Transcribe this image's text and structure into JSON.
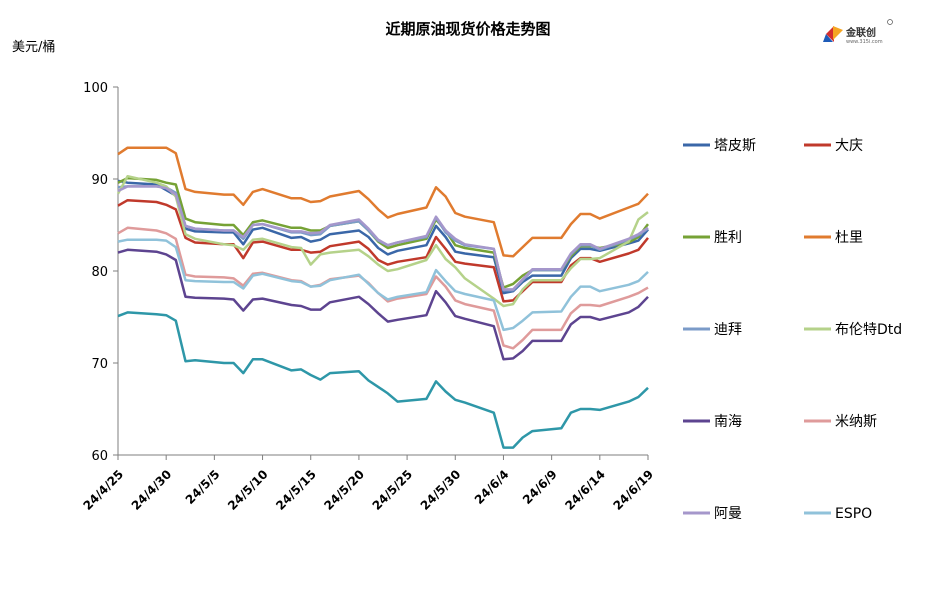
{
  "chart_data": {
    "type": "line",
    "title": "近期原油现货价格走势图",
    "unit_label": "美元/桶",
    "ylim": [
      60,
      100
    ],
    "yticks": [
      60,
      70,
      80,
      90,
      100
    ],
    "x_tick_labels": [
      "24/4/25",
      "24/4/30",
      "24/5/5",
      "24/5/10",
      "24/5/15",
      "24/5/20",
      "24/5/25",
      "24/5/30",
      "24/6/4",
      "24/6/9",
      "24/6/14",
      "24/6/19"
    ],
    "x_tick_days": [
      0,
      5,
      10,
      15,
      20,
      25,
      30,
      35,
      40,
      45,
      50,
      55
    ],
    "x_range_days": [
      0,
      55
    ],
    "grid": false,
    "legend_position": "right",
    "dates": [
      "24/4/25",
      "24/4/26",
      "24/4/29",
      "24/4/30",
      "24/5/1",
      "24/5/2",
      "24/5/3",
      "24/5/6",
      "24/5/7",
      "24/5/8",
      "24/5/9",
      "24/5/10",
      "24/5/13",
      "24/5/14",
      "24/5/15",
      "24/5/16",
      "24/5/17",
      "24/5/20",
      "24/5/21",
      "24/5/22",
      "24/5/23",
      "24/5/24",
      "24/5/27",
      "24/5/28",
      "24/5/29",
      "24/5/30",
      "24/5/31",
      "24/6/3",
      "24/6/4",
      "24/6/5",
      "24/6/6",
      "24/6/7",
      "24/6/10",
      "24/6/11",
      "24/6/12",
      "24/6/13",
      "24/6/14",
      "24/6/17",
      "24/6/18",
      "24/6/19"
    ],
    "days": [
      0,
      1,
      4,
      5,
      6,
      7,
      8,
      11,
      12,
      13,
      14,
      15,
      18,
      19,
      20,
      21,
      22,
      25,
      26,
      27,
      28,
      29,
      32,
      33,
      34,
      35,
      36,
      39,
      40,
      41,
      42,
      43,
      46,
      47,
      48,
      49,
      50,
      53,
      54,
      55
    ],
    "series": [
      {
        "name": "塔皮斯",
        "color": "#3a67a8",
        "values": [
          89.8,
          89.6,
          89.4,
          88.8,
          88.2,
          84.6,
          84.3,
          84.2,
          84.2,
          82.9,
          84.5,
          84.7,
          83.6,
          83.7,
          83.2,
          83.4,
          84.0,
          84.4,
          83.7,
          82.5,
          81.8,
          82.2,
          82.8,
          84.9,
          83.7,
          82.1,
          81.9,
          81.5,
          77.6,
          77.8,
          78.8,
          79.5,
          79.5,
          81.4,
          82.4,
          82.4,
          82.2,
          83.0,
          83.3,
          84.5
        ]
      },
      {
        "name": "大庆",
        "color": "#c0392b",
        "values": [
          87.1,
          87.7,
          87.5,
          87.2,
          86.7,
          83.6,
          83.1,
          82.9,
          82.9,
          81.4,
          83.1,
          83.2,
          82.3,
          82.3,
          82.0,
          82.1,
          82.7,
          83.2,
          82.4,
          81.2,
          80.7,
          81.0,
          81.5,
          83.7,
          82.4,
          81.0,
          80.8,
          80.4,
          76.7,
          76.8,
          77.8,
          78.8,
          78.8,
          80.6,
          81.4,
          81.4,
          81.0,
          81.9,
          82.3,
          83.6
        ]
      },
      {
        "name": "胜利",
        "color": "#76a235",
        "values": [
          89.6,
          90.1,
          89.9,
          89.6,
          89.4,
          85.7,
          85.3,
          85.0,
          85.0,
          83.9,
          85.3,
          85.5,
          84.7,
          84.7,
          84.4,
          84.4,
          84.9,
          85.4,
          84.4,
          83.2,
          82.5,
          82.8,
          83.5,
          85.6,
          84.4,
          82.8,
          82.5,
          82.0,
          78.2,
          78.6,
          79.5,
          80.1,
          80.1,
          81.6,
          82.7,
          82.7,
          82.5,
          83.1,
          83.7,
          85.1
        ]
      },
      {
        "name": "杜里",
        "color": "#e07b2f",
        "values": [
          92.7,
          93.4,
          93.4,
          93.4,
          92.8,
          88.9,
          88.6,
          88.3,
          88.3,
          87.2,
          88.6,
          88.9,
          87.9,
          87.9,
          87.5,
          87.6,
          88.1,
          88.7,
          87.8,
          86.7,
          85.8,
          86.2,
          86.9,
          89.1,
          88.1,
          86.3,
          85.9,
          85.3,
          81.7,
          81.6,
          82.6,
          83.6,
          83.6,
          85.1,
          86.2,
          86.2,
          85.7,
          86.9,
          87.3,
          88.4
        ]
      },
      {
        "name": "迪拜",
        "color": "#7b9bc8",
        "values": [
          89.1,
          89.2,
          89.2,
          89.1,
          88.5,
          84.9,
          84.6,
          84.4,
          84.4,
          83.5,
          85.0,
          85.1,
          84.2,
          84.2,
          83.9,
          84.0,
          84.9,
          85.4,
          84.4,
          83.3,
          82.8,
          83.1,
          83.7,
          85.8,
          84.2,
          83.3,
          82.8,
          82.4,
          77.9,
          77.9,
          79.0,
          80.1,
          80.1,
          81.8,
          82.8,
          82.8,
          82.3,
          83.4,
          83.9,
          84.6
        ]
      },
      {
        "name": "布伦特Dtd",
        "color": "#b5d28a",
        "values": [
          88.4,
          90.3,
          89.6,
          89.2,
          88.1,
          84.0,
          83.5,
          82.9,
          82.8,
          82.3,
          83.4,
          83.5,
          82.6,
          82.5,
          80.7,
          81.8,
          82.0,
          82.3,
          81.6,
          80.7,
          80.0,
          80.2,
          81.2,
          82.8,
          81.3,
          80.4,
          79.2,
          77.0,
          76.2,
          76.4,
          78.0,
          79.0,
          79.0,
          80.3,
          81.3,
          81.3,
          81.4,
          83.2,
          85.6,
          86.4
        ]
      },
      {
        "name": "南海",
        "color": "#5d4490",
        "values": [
          82.0,
          82.3,
          82.1,
          81.8,
          81.2,
          77.2,
          77.1,
          77.0,
          76.9,
          75.7,
          76.9,
          77.0,
          76.3,
          76.2,
          75.8,
          75.8,
          76.6,
          77.2,
          76.4,
          75.4,
          74.5,
          74.7,
          75.2,
          77.8,
          76.6,
          75.1,
          74.8,
          74.0,
          70.4,
          70.5,
          71.3,
          72.4,
          72.4,
          74.2,
          75.0,
          75.0,
          74.7,
          75.5,
          76.1,
          77.2
        ]
      },
      {
        "name": "米纳斯",
        "color": "#df9b9b",
        "values": [
          84.1,
          84.7,
          84.4,
          84.1,
          83.5,
          79.6,
          79.4,
          79.3,
          79.2,
          78.4,
          79.7,
          79.8,
          79.0,
          78.9,
          78.3,
          78.5,
          79.1,
          79.5,
          78.7,
          77.6,
          76.7,
          77.0,
          77.5,
          79.4,
          78.3,
          76.8,
          76.4,
          75.7,
          71.9,
          71.6,
          72.5,
          73.6,
          73.6,
          75.4,
          76.3,
          76.3,
          76.2,
          77.2,
          77.6,
          78.2
        ]
      },
      {
        "name": "阿曼",
        "color": "#a597cb",
        "values": [
          88.7,
          89.2,
          89.2,
          89.0,
          88.3,
          84.9,
          84.6,
          84.4,
          84.4,
          83.7,
          85.0,
          85.1,
          84.3,
          84.3,
          84.1,
          84.2,
          85.0,
          85.6,
          84.6,
          83.4,
          82.8,
          83.1,
          83.8,
          85.9,
          84.4,
          83.5,
          82.9,
          82.4,
          78.0,
          78.0,
          79.1,
          80.2,
          80.2,
          81.9,
          82.9,
          82.9,
          82.4,
          83.5,
          84.0,
          84.7
        ]
      },
      {
        "name": "ESPO",
        "color": "#90c2da",
        "values": [
          83.2,
          83.4,
          83.4,
          83.3,
          82.6,
          79.0,
          78.9,
          78.8,
          78.8,
          78.1,
          79.5,
          79.7,
          78.9,
          78.8,
          78.3,
          78.4,
          79.0,
          79.6,
          78.6,
          77.6,
          76.9,
          77.2,
          77.7,
          80.1,
          78.9,
          77.8,
          77.5,
          76.8,
          73.6,
          73.8,
          74.6,
          75.5,
          75.6,
          77.2,
          78.3,
          78.3,
          77.8,
          78.5,
          78.9,
          79.9
        ]
      },
      {
        "name": "",
        "color": "#2e97a8",
        "values": [
          75.1,
          75.5,
          75.3,
          75.2,
          74.6,
          70.2,
          70.3,
          70.0,
          70.0,
          68.9,
          70.4,
          70.4,
          69.2,
          69.3,
          68.7,
          68.2,
          68.9,
          69.1,
          68.1,
          67.4,
          66.7,
          65.8,
          66.1,
          68.0,
          66.9,
          66.0,
          65.7,
          64.6,
          60.8,
          60.8,
          61.9,
          62.6,
          62.9,
          64.6,
          65.0,
          65.0,
          64.9,
          65.8,
          66.3,
          67.3
        ]
      }
    ]
  },
  "legend": [
    {
      "label": "塔皮斯",
      "color": "#3a67a8"
    },
    {
      "label": "大庆",
      "color": "#c0392b"
    },
    {
      "label": "胜利",
      "color": "#76a235"
    },
    {
      "label": "杜里",
      "color": "#e07b2f"
    },
    {
      "label": "迪拜",
      "color": "#7b9bc8"
    },
    {
      "label": "布伦特Dtd",
      "color": "#b5d28a"
    },
    {
      "label": "南海",
      "color": "#5d4490"
    },
    {
      "label": "米纳斯",
      "color": "#df9b9b"
    },
    {
      "label": "阿曼",
      "color": "#a597cb"
    },
    {
      "label": "ESPO",
      "color": "#90c2da"
    }
  ],
  "logo": {
    "name": "金联创",
    "url_text": "www.315i.com"
  }
}
